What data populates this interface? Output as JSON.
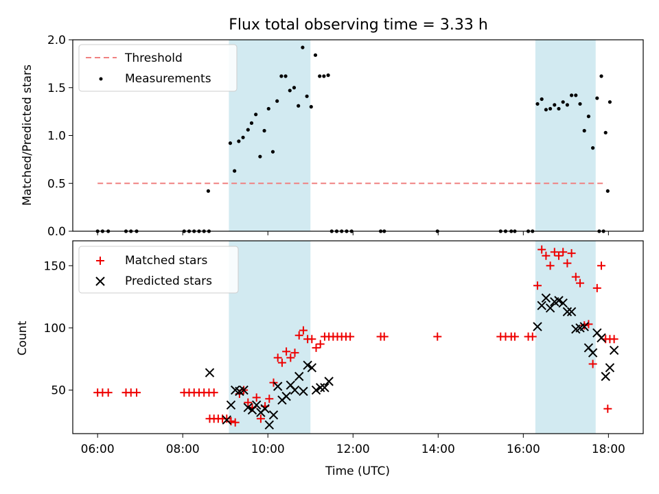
{
  "title": "Flux total observing time = 3.33 h",
  "colors": {
    "threshold": "#f08080",
    "measurement": "#000000",
    "matched": "#ee0000",
    "predicted": "#000000",
    "shade": "#add8e6"
  },
  "chart_data": [
    {
      "type": "scatter",
      "ylabel": "Matched/Predicted stars",
      "xlim": [
        "05:25",
        "18:49"
      ],
      "ylim": [
        0,
        2.0
      ],
      "yticks": [
        "0.0",
        "0.5",
        "1.0",
        "1.5",
        "2.0"
      ],
      "shaded_intervals": [
        [
          "09:05",
          "11:00"
        ],
        [
          "16:17",
          "17:42"
        ]
      ],
      "legend_position": "upper-left",
      "threshold": {
        "name": "Threshold",
        "y": 0.5,
        "x_range": [
          "06:00",
          "17:57"
        ]
      },
      "measurements": {
        "name": "Measurements",
        "points": [
          [
            "06:00",
            0
          ],
          [
            "06:07",
            0
          ],
          [
            "06:15",
            0
          ],
          [
            "06:40",
            0
          ],
          [
            "06:47",
            0
          ],
          [
            "06:55",
            0
          ],
          [
            "08:02",
            0
          ],
          [
            "08:09",
            0
          ],
          [
            "08:16",
            0
          ],
          [
            "08:23",
            0
          ],
          [
            "08:30",
            0
          ],
          [
            "08:37",
            0
          ],
          [
            "08:36",
            0.42
          ],
          [
            "09:07",
            0.92
          ],
          [
            "09:13",
            0.63
          ],
          [
            "09:19",
            0.94
          ],
          [
            "09:25",
            0.98
          ],
          [
            "09:32",
            1.06
          ],
          [
            "09:37",
            1.13
          ],
          [
            "09:43",
            1.22
          ],
          [
            "09:49",
            0.78
          ],
          [
            "09:55",
            1.05
          ],
          [
            "10:01",
            1.28
          ],
          [
            "10:07",
            0.83
          ],
          [
            "10:13",
            1.36
          ],
          [
            "10:19",
            1.62
          ],
          [
            "10:25",
            1.62
          ],
          [
            "10:31",
            1.47
          ],
          [
            "10:37",
            1.5
          ],
          [
            "10:43",
            1.31
          ],
          [
            "10:49",
            1.92
          ],
          [
            "10:55",
            1.41
          ],
          [
            "11:01",
            1.3
          ],
          [
            "11:07",
            1.84
          ],
          [
            "11:13",
            1.62
          ],
          [
            "11:19",
            1.62
          ],
          [
            "11:25",
            1.63
          ],
          [
            "11:30",
            0
          ],
          [
            "11:37",
            0
          ],
          [
            "11:44",
            0
          ],
          [
            "11:51",
            0
          ],
          [
            "11:58",
            0
          ],
          [
            "12:39",
            0
          ],
          [
            "12:44",
            0
          ],
          [
            "13:59",
            0
          ],
          [
            "15:28",
            0
          ],
          [
            "15:35",
            0
          ],
          [
            "15:43",
            0
          ],
          [
            "15:48",
            0
          ],
          [
            "16:07",
            0
          ],
          [
            "16:13",
            0
          ],
          [
            "16:20",
            1.33
          ],
          [
            "16:26",
            1.38
          ],
          [
            "16:32",
            1.27
          ],
          [
            "16:38",
            1.28
          ],
          [
            "16:44",
            1.32
          ],
          [
            "16:50",
            1.28
          ],
          [
            "16:56",
            1.35
          ],
          [
            "17:02",
            1.32
          ],
          [
            "17:08",
            1.42
          ],
          [
            "17:14",
            1.42
          ],
          [
            "17:20",
            1.33
          ],
          [
            "17:26",
            1.05
          ],
          [
            "17:32",
            1.2
          ],
          [
            "17:38",
            0.87
          ],
          [
            "17:44",
            1.39
          ],
          [
            "17:50",
            1.62
          ],
          [
            "17:56",
            1.03
          ],
          [
            "18:02",
            1.35
          ],
          [
            "17:47",
            0
          ],
          [
            "17:53",
            0
          ],
          [
            "17:59",
            0.42
          ]
        ]
      }
    },
    {
      "type": "scatter",
      "xlabel": "Time (UTC)",
      "ylabel": "Count",
      "xlim": [
        "05:25",
        "18:49"
      ],
      "ylim": [
        15,
        170
      ],
      "yticks": [
        "50",
        "100",
        "150"
      ],
      "xticks": [
        "06:00",
        "08:00",
        "10:00",
        "12:00",
        "14:00",
        "16:00",
        "18:00"
      ],
      "shaded_intervals": [
        [
          "09:05",
          "11:00"
        ],
        [
          "16:17",
          "17:42"
        ]
      ],
      "legend_position": "upper-left",
      "series": [
        {
          "name": "Matched stars",
          "marker": "+",
          "points": [
            [
              "06:00",
              48
            ],
            [
              "06:07",
              48
            ],
            [
              "06:15",
              48
            ],
            [
              "06:40",
              48
            ],
            [
              "06:47",
              48
            ],
            [
              "06:55",
              48
            ],
            [
              "08:02",
              48
            ],
            [
              "08:09",
              48
            ],
            [
              "08:16",
              48
            ],
            [
              "08:23",
              48
            ],
            [
              "08:30",
              48
            ],
            [
              "08:37",
              48
            ],
            [
              "08:44",
              48
            ],
            [
              "08:38",
              27
            ],
            [
              "08:44",
              27
            ],
            [
              "08:50",
              27
            ],
            [
              "08:56",
              27
            ],
            [
              "09:02",
              27
            ],
            [
              "09:08",
              25
            ],
            [
              "09:14",
              24
            ],
            [
              "09:20",
              47
            ],
            [
              "09:26",
              50
            ],
            [
              "09:32",
              40
            ],
            [
              "09:38",
              36
            ],
            [
              "09:44",
              44
            ],
            [
              "09:50",
              27
            ],
            [
              "09:56",
              37
            ],
            [
              "10:02",
              43
            ],
            [
              "10:08",
              56
            ],
            [
              "10:14",
              76
            ],
            [
              "10:20",
              72
            ],
            [
              "10:26",
              81
            ],
            [
              "10:32",
              76
            ],
            [
              "10:38",
              80
            ],
            [
              "10:44",
              94
            ],
            [
              "10:50",
              98
            ],
            [
              "10:56",
              91
            ],
            [
              "11:02",
              91
            ],
            [
              "11:08",
              84
            ],
            [
              "11:14",
              87
            ],
            [
              "11:20",
              93
            ],
            [
              "11:26",
              93
            ],
            [
              "11:32",
              93
            ],
            [
              "11:38",
              93
            ],
            [
              "11:44",
              93
            ],
            [
              "11:50",
              93
            ],
            [
              "11:56",
              93
            ],
            [
              "12:39",
              93
            ],
            [
              "12:44",
              93
            ],
            [
              "13:59",
              93
            ],
            [
              "15:28",
              93
            ],
            [
              "15:35",
              93
            ],
            [
              "15:43",
              93
            ],
            [
              "15:48",
              93
            ],
            [
              "16:07",
              93
            ],
            [
              "16:13",
              93
            ],
            [
              "16:20",
              134
            ],
            [
              "16:26",
              163
            ],
            [
              "16:32",
              158
            ],
            [
              "16:38",
              150
            ],
            [
              "16:44",
              161
            ],
            [
              "16:50",
              158
            ],
            [
              "16:56",
              161
            ],
            [
              "17:02",
              152
            ],
            [
              "17:08",
              160
            ],
            [
              "17:14",
              141
            ],
            [
              "17:20",
              136
            ],
            [
              "17:26",
              102
            ],
            [
              "17:32",
              103
            ],
            [
              "17:38",
              71
            ],
            [
              "17:44",
              132
            ],
            [
              "17:50",
              150
            ],
            [
              "17:56",
              91
            ],
            [
              "18:02",
              91
            ],
            [
              "18:08",
              91
            ],
            [
              "17:59",
              35
            ]
          ]
        },
        {
          "name": "Predicted stars",
          "marker": "x",
          "points": [
            [
              "08:38",
              64
            ],
            [
              "09:02",
              26
            ],
            [
              "09:08",
              38
            ],
            [
              "09:14",
              50
            ],
            [
              "09:20",
              49
            ],
            [
              "09:26",
              50
            ],
            [
              "09:32",
              36
            ],
            [
              "09:38",
              34
            ],
            [
              "09:44",
              38
            ],
            [
              "09:50",
              32
            ],
            [
              "09:56",
              35
            ],
            [
              "10:02",
              22
            ],
            [
              "10:08",
              30
            ],
            [
              "10:14",
              53
            ],
            [
              "10:20",
              42
            ],
            [
              "10:26",
              45
            ],
            [
              "10:32",
              54
            ],
            [
              "10:38",
              50
            ],
            [
              "10:44",
              61
            ],
            [
              "10:50",
              49
            ],
            [
              "10:56",
              70
            ],
            [
              "11:02",
              68
            ],
            [
              "11:08",
              50
            ],
            [
              "11:14",
              52
            ],
            [
              "11:20",
              52
            ],
            [
              "11:26",
              57
            ],
            [
              "16:20",
              101
            ],
            [
              "16:26",
              118
            ],
            [
              "16:32",
              124
            ],
            [
              "16:38",
              116
            ],
            [
              "16:44",
              121
            ],
            [
              "16:50",
              122
            ],
            [
              "16:56",
              120
            ],
            [
              "17:02",
              113
            ],
            [
              "17:08",
              113
            ],
            [
              "17:14",
              99
            ],
            [
              "17:20",
              100
            ],
            [
              "17:26",
              101
            ],
            [
              "17:32",
              84
            ],
            [
              "17:38",
              80
            ],
            [
              "17:44",
              96
            ],
            [
              "17:50",
              92
            ],
            [
              "17:56",
              61
            ],
            [
              "18:02",
              68
            ],
            [
              "18:08",
              82
            ]
          ]
        }
      ]
    }
  ]
}
